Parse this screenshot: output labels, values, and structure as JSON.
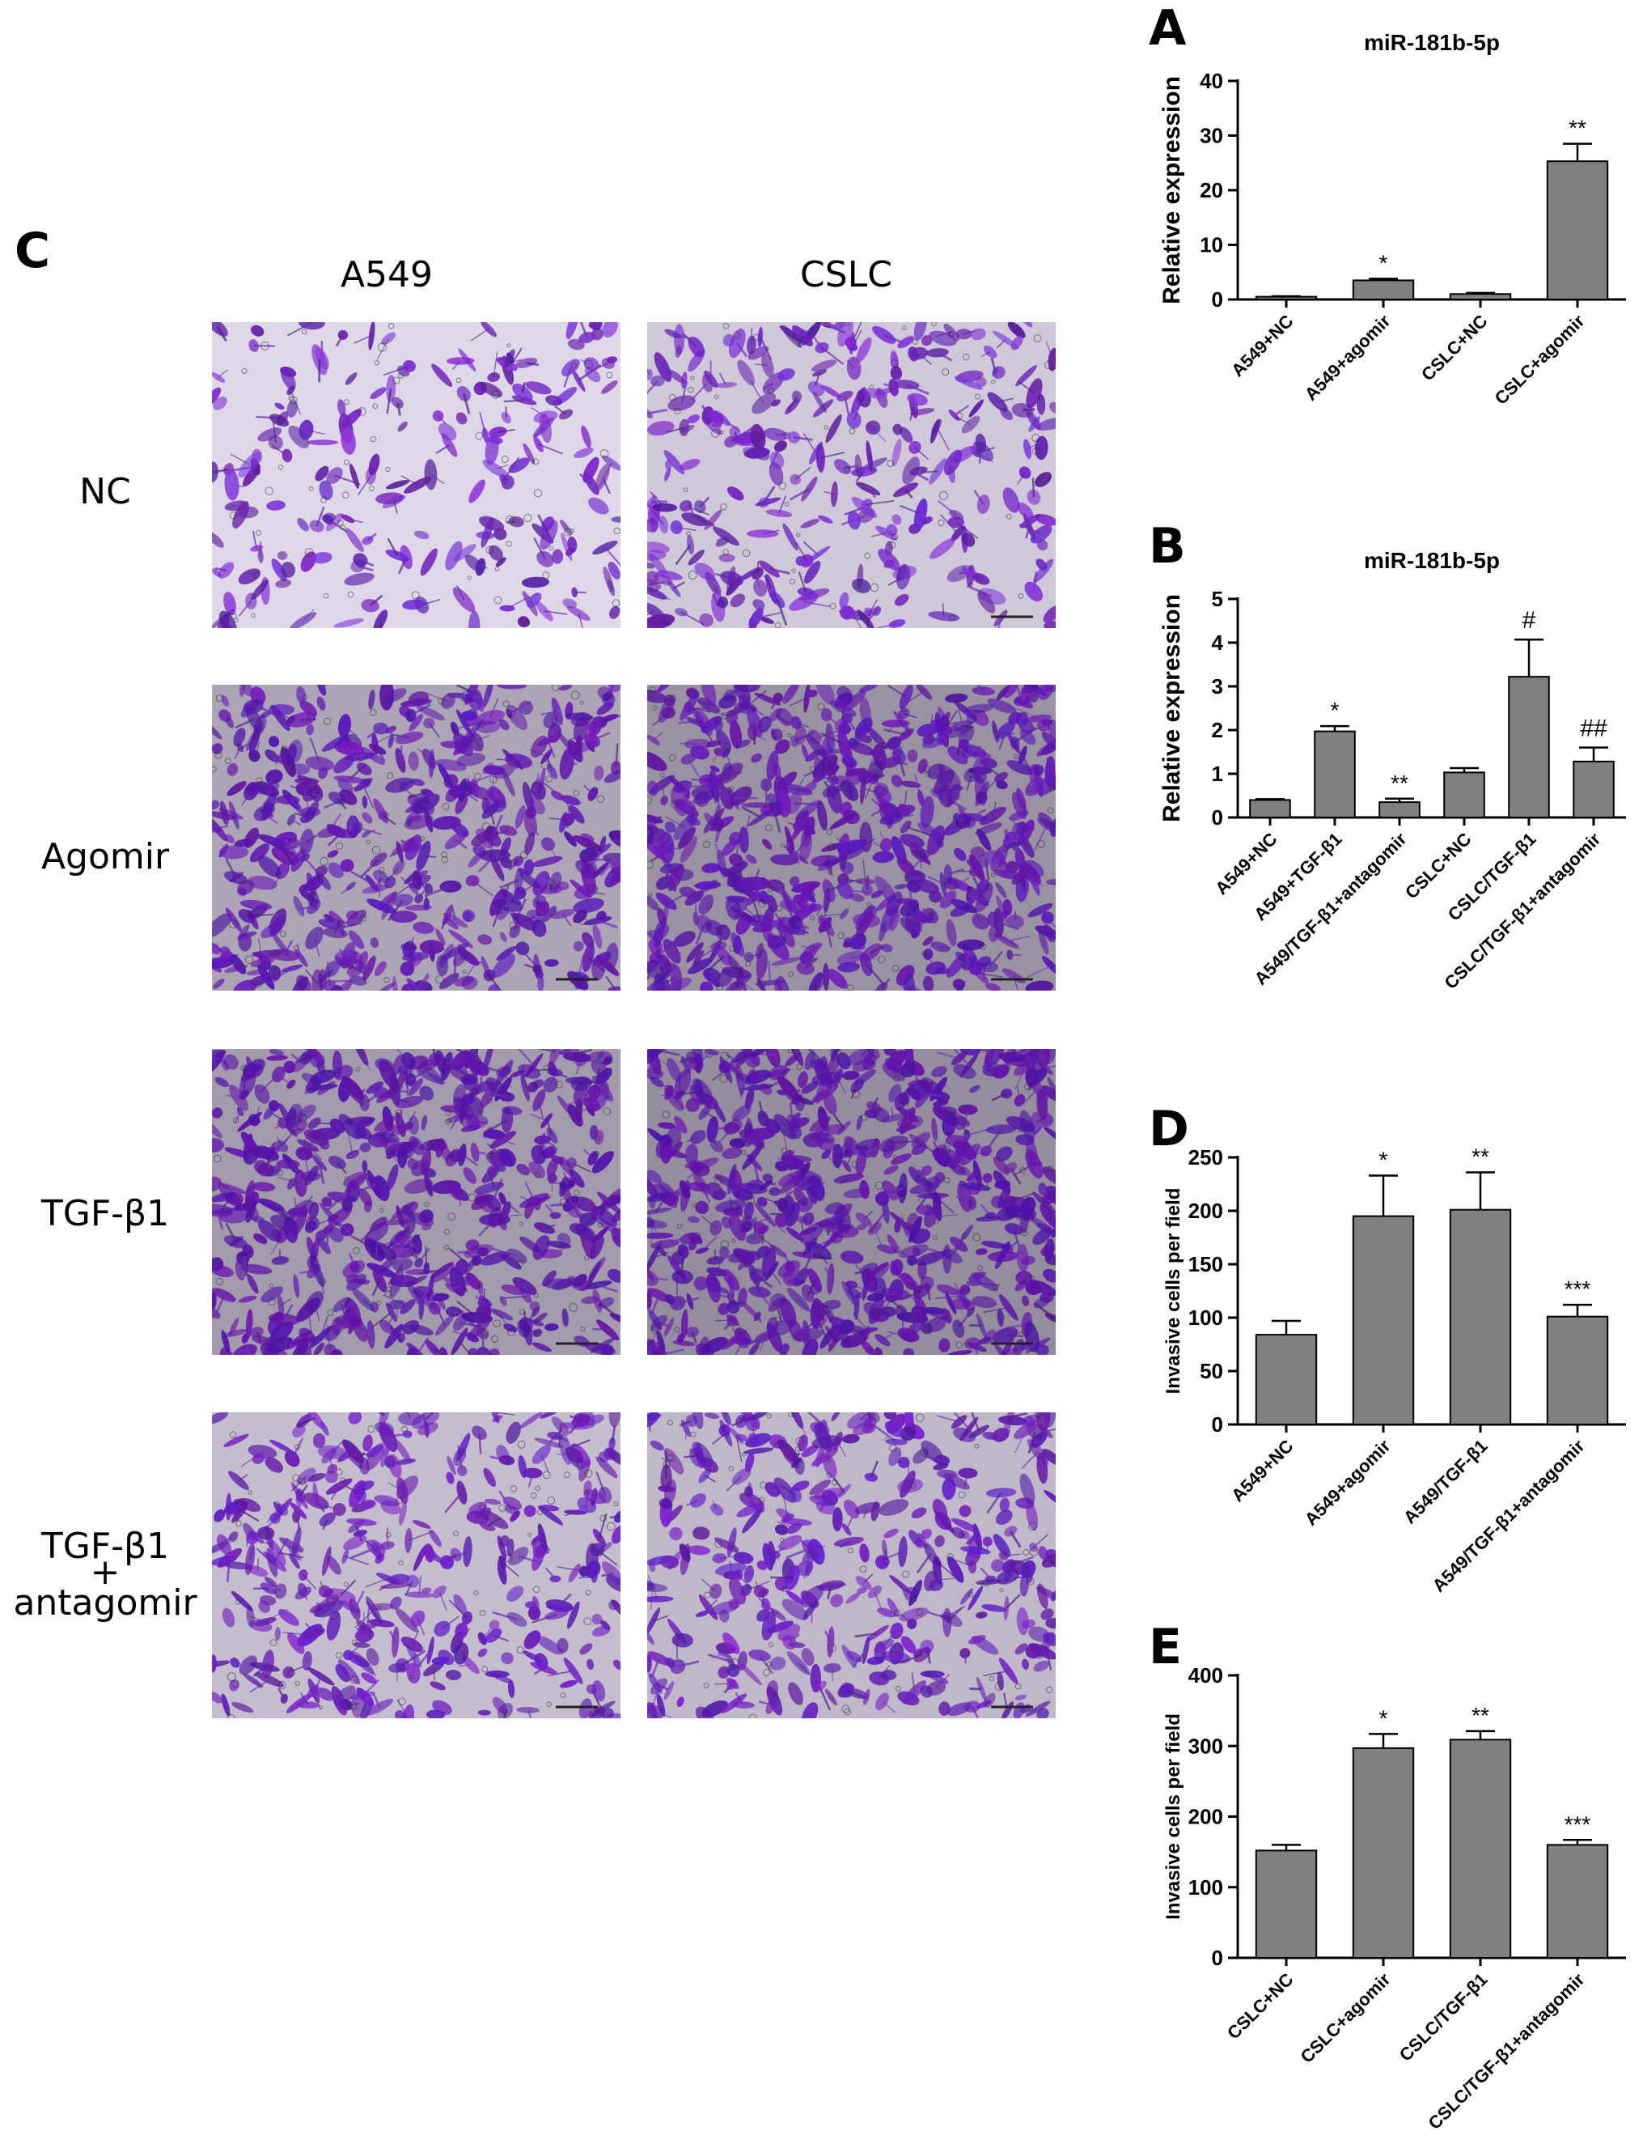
{
  "panel_c": {
    "letter": "C",
    "columns": [
      "A549",
      "CSLC"
    ],
    "rows": [
      {
        "label_lines": [
          "NC"
        ],
        "densities": [
          0.22,
          0.38
        ],
        "stain": 0.55
      },
      {
        "label_lines": [
          "Agomir"
        ],
        "densities": [
          0.75,
          0.95
        ],
        "stain": 0.9
      },
      {
        "label_lines": [
          "TGF-β1"
        ],
        "densities": [
          0.85,
          1.0
        ],
        "stain": 1.0
      },
      {
        "label_lines": [
          "TGF-β1",
          "+",
          "antagomir"
        ],
        "densities": [
          0.5,
          0.55
        ],
        "stain": 0.75
      }
    ]
  },
  "chart_data": [
    {
      "id": "A",
      "type": "bar",
      "letter": "A",
      "title": "miR-181b-5p",
      "ylabel": "Relative expression",
      "xlabel": "",
      "categories": [
        "A549+NC",
        "A549+agomir",
        "CSLC+NC",
        "CSLC+agomir"
      ],
      "values": [
        0.5,
        3.5,
        1.0,
        25.3
      ],
      "errors": [
        0.1,
        0.3,
        0.2,
        3.2
      ],
      "annotations": [
        "",
        "*",
        "",
        "**"
      ],
      "ylim": [
        0,
        40
      ],
      "yticks": [
        0,
        10,
        20,
        30,
        40
      ],
      "bar_color": "#808080",
      "grid": false
    },
    {
      "id": "B",
      "type": "bar",
      "letter": "B",
      "title": "miR-181b-5p",
      "ylabel": "Relative expression",
      "xlabel": "",
      "categories": [
        "A549+NC",
        "A549+TGF-β1",
        "A549/TGF-β1+antagomir",
        "CSLC+NC",
        "CSLC/TGF-β1",
        "CSLC/TGF-β1+antagomir"
      ],
      "values": [
        0.4,
        1.97,
        0.35,
        1.03,
        3.22,
        1.28
      ],
      "errors": [
        0.02,
        0.12,
        0.08,
        0.1,
        0.85,
        0.32
      ],
      "annotations": [
        "",
        "*",
        "**",
        "",
        "#",
        "##"
      ],
      "ylim": [
        0,
        5
      ],
      "yticks": [
        0,
        1,
        2,
        3,
        4,
        5
      ],
      "bar_color": "#808080",
      "grid": false
    },
    {
      "id": "D",
      "type": "bar",
      "letter": "D",
      "title": "",
      "ylabel": "Invasive cells per field",
      "xlabel": "",
      "categories": [
        "A549+NC",
        "A549+agomir",
        "A549/TGF-β1",
        "A549/TGF-β1+antagomir"
      ],
      "values": [
        84,
        195,
        201,
        101
      ],
      "errors": [
        13,
        38,
        35,
        11
      ],
      "annotations": [
        "",
        "*",
        "**",
        "***"
      ],
      "ylim": [
        0,
        250
      ],
      "yticks": [
        0,
        50,
        100,
        150,
        200,
        250
      ],
      "bar_color": "#808080",
      "grid": false
    },
    {
      "id": "E",
      "type": "bar",
      "letter": "E",
      "title": "",
      "ylabel": "Invasive cells per field",
      "xlabel": "",
      "categories": [
        "CSLC+NC",
        "CSLC+agomir",
        "CSLC/TGF-β1",
        "CSLC/TGF-β1+antagomir"
      ],
      "values": [
        152,
        297,
        309,
        160
      ],
      "errors": [
        8,
        20,
        12,
        7
      ],
      "annotations": [
        "",
        "*",
        "**",
        "***"
      ],
      "ylim": [
        0,
        400
      ],
      "yticks": [
        0,
        100,
        200,
        300,
        400
      ],
      "bar_color": "#808080",
      "grid": false
    }
  ]
}
